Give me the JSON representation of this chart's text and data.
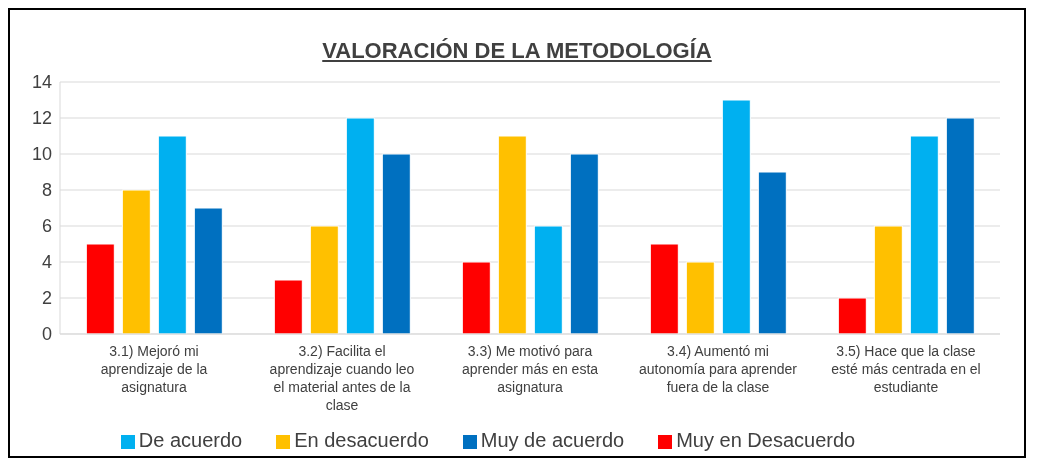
{
  "chart_data": {
    "type": "bar",
    "title": "VALORACIÓN DE LA METODOLOGÍA",
    "categories": [
      "3.1) Mejoró mi aprendizaje de la asignatura",
      "3.2) Facilita el aprendizaje cuando leo el material antes de la clase",
      "3.3) Me motivó para aprender más en esta asignatura",
      "3.4) Aumentó mi autonomía para aprender fuera de la clase",
      "3.5) Hace que la clase esté más centrada en el estudiante"
    ],
    "series": [
      {
        "name": "Muy en Desacuerdo",
        "color": "#ff0000",
        "values": [
          5,
          3,
          4,
          5,
          2
        ]
      },
      {
        "name": "En desacuerdo",
        "color": "#ffc000",
        "values": [
          8,
          6,
          11,
          4,
          6
        ]
      },
      {
        "name": "De acuerdo",
        "color": "#00b0f0",
        "values": [
          11,
          12,
          6,
          13,
          11
        ]
      },
      {
        "name": "Muy de acuerdo",
        "color": "#0070c0",
        "values": [
          7,
          10,
          10,
          9,
          12
        ]
      }
    ],
    "ylim": [
      0,
      14
    ],
    "yticks": [
      0,
      2,
      4,
      6,
      8,
      10,
      12,
      14
    ],
    "grid": "y",
    "legend": "bottom"
  }
}
